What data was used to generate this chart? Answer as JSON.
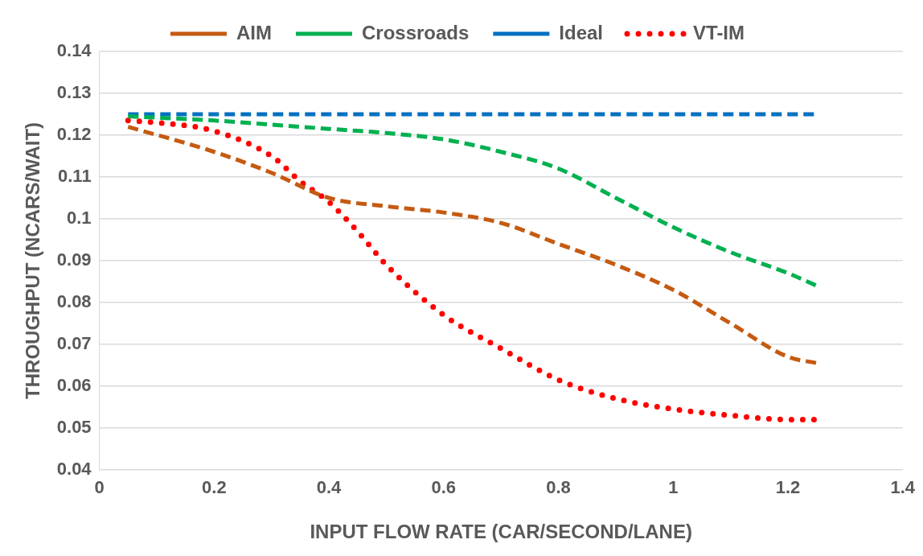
{
  "chart_data": {
    "type": "line",
    "xlabel": "INPUT FLOW RATE (CAR/SECOND/LANE)",
    "ylabel": "THROUGHPUT (NCARS/WAIT)",
    "xlim": [
      0,
      1.4
    ],
    "xticks": [
      0,
      {
        "value": 0.2,
        "label": "0.2"
      },
      {
        "value": 0.4,
        "label": "0.4"
      },
      {
        "value": 0.6,
        "label": "0.6"
      },
      {
        "value": 0.8,
        "label": "0.8"
      },
      1,
      {
        "value": 1.2,
        "label": "1.2"
      },
      {
        "value": 1.4,
        "label": "1.4"
      }
    ],
    "ylim": [
      0.04,
      0.14
    ],
    "yticks": [
      0.04,
      0.05,
      0.06,
      0.07,
      0.08,
      0.09,
      0.1,
      0.11,
      0.12,
      0.13,
      0.14
    ],
    "grid": "y",
    "legend": "top",
    "marker": "none",
    "series": [
      {
        "name": "AIM",
        "color": "#c55a11",
        "line_style": "dashed",
        "x": [
          0.05,
          0.2,
          0.3,
          0.4,
          0.5,
          0.6,
          0.7,
          0.8,
          0.9,
          1.0,
          1.1,
          1.2,
          1.25
        ],
        "values": [
          0.122,
          0.116,
          0.111,
          0.105,
          0.103,
          0.1015,
          0.099,
          0.094,
          0.089,
          0.083,
          0.075,
          0.067,
          0.0655
        ]
      },
      {
        "name": "Crossroads",
        "color": "#00b050",
        "line_style": "dashed",
        "x": [
          0.05,
          0.2,
          0.3,
          0.4,
          0.5,
          0.6,
          0.7,
          0.8,
          0.9,
          1.0,
          1.1,
          1.2,
          1.25
        ],
        "values": [
          0.1245,
          0.1235,
          0.1225,
          0.1215,
          0.1205,
          0.119,
          0.116,
          0.112,
          0.105,
          0.098,
          0.092,
          0.087,
          0.084
        ]
      },
      {
        "name": "Ideal",
        "color": "#0070c0",
        "line_style": "dashed",
        "x": [
          0.05,
          0.2,
          0.4,
          0.6,
          0.8,
          1.0,
          1.2,
          1.25
        ],
        "values": [
          0.125,
          0.125,
          0.125,
          0.125,
          0.125,
          0.125,
          0.125,
          0.125
        ]
      },
      {
        "name": "VT-IM",
        "color": "#ff0000",
        "line_style": "dotted",
        "x": [
          0.05,
          0.1,
          0.2,
          0.3,
          0.35,
          0.4,
          0.45,
          0.5,
          0.6,
          0.7,
          0.8,
          0.9,
          1.0,
          1.1,
          1.2,
          1.25
        ],
        "values": [
          0.1235,
          0.123,
          0.121,
          0.115,
          0.109,
          0.104,
          0.097,
          0.089,
          0.077,
          0.069,
          0.0615,
          0.057,
          0.0545,
          0.053,
          0.052,
          0.052
        ]
      }
    ]
  }
}
